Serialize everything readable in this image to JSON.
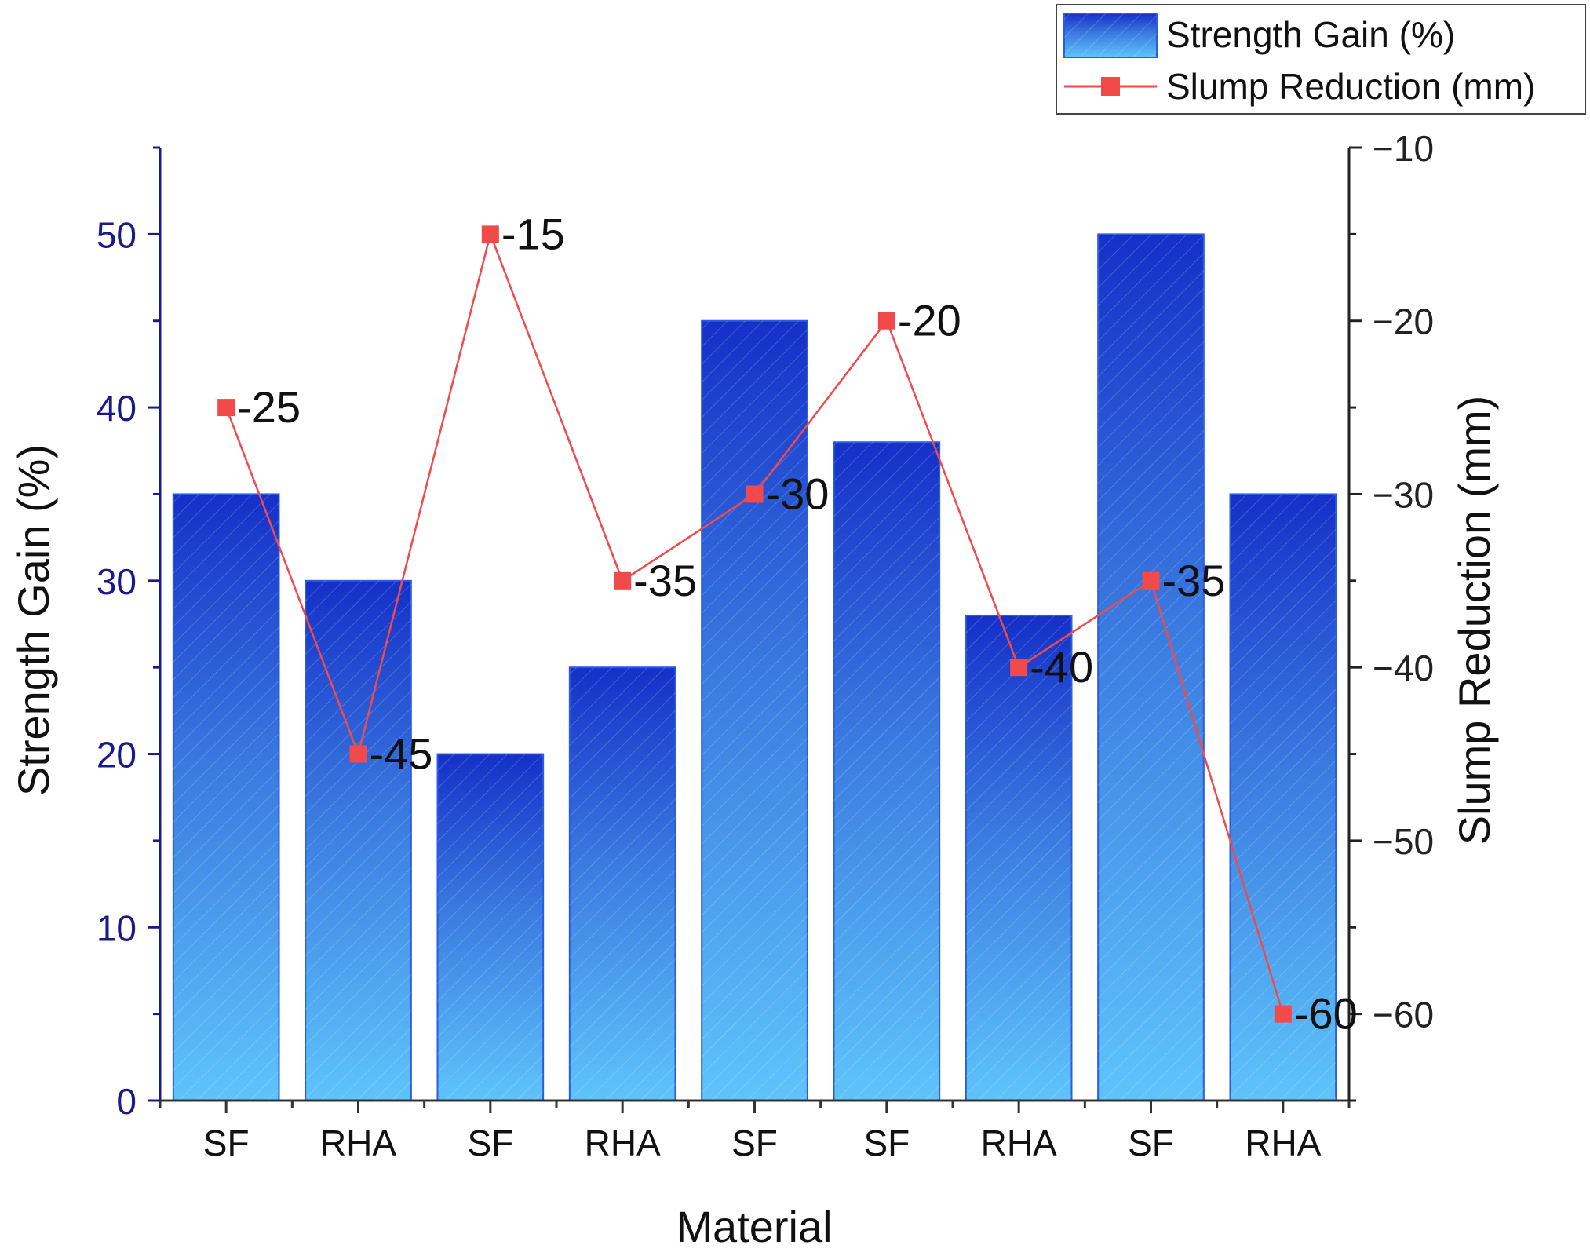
{
  "chart_data": {
    "type": "bar+line",
    "xlabel": "Material",
    "categories": [
      "SF",
      "RHA",
      "SF",
      "RHA",
      "SF",
      "SF",
      "RHA",
      "SF",
      "RHA"
    ],
    "series": [
      {
        "name": "Strength Gain (%)",
        "type": "bar",
        "axis": "left",
        "values": [
          35,
          30,
          20,
          25,
          45,
          38,
          28,
          50,
          35
        ]
      },
      {
        "name": "Slump Reduction (mm)",
        "type": "line",
        "axis": "right",
        "values": [
          -25,
          -45,
          -15,
          -35,
          -30,
          -20,
          -40,
          -35,
          -60
        ],
        "labels": [
          "-25",
          "-45",
          "-15",
          "-35",
          "-30",
          "-20",
          "-40",
          "-35",
          "-60"
        ]
      }
    ],
    "y_left": {
      "label": "Strength Gain (%)",
      "range": [
        0,
        55
      ],
      "ticks": [
        0,
        10,
        20,
        30,
        40,
        50
      ],
      "tick_labels": [
        "0",
        "10",
        "20",
        "30",
        "40",
        "50"
      ]
    },
    "y_right": {
      "label": "Slump Reduction (mm)",
      "range": [
        -65,
        -10
      ],
      "ticks": [
        -10,
        -20,
        -30,
        -40,
        -50,
        -60
      ],
      "tick_labels": [
        "−10",
        "−20",
        "−30",
        "−40",
        "−50",
        "−60"
      ]
    },
    "legend": {
      "position": "top-right",
      "entries": [
        "Strength Gain (%)",
        "Slump Reduction (mm)"
      ]
    },
    "colors": {
      "bar_top": "#1530c8",
      "bar_mid": "#3a7ae0",
      "bar_bottom": "#5ec4fb",
      "bar_edge": "#2a5be0",
      "line": "#f24a4a",
      "marker": "#f24a4a",
      "left_axis": "#1a1a8c",
      "right_axis": "#222222"
    }
  }
}
